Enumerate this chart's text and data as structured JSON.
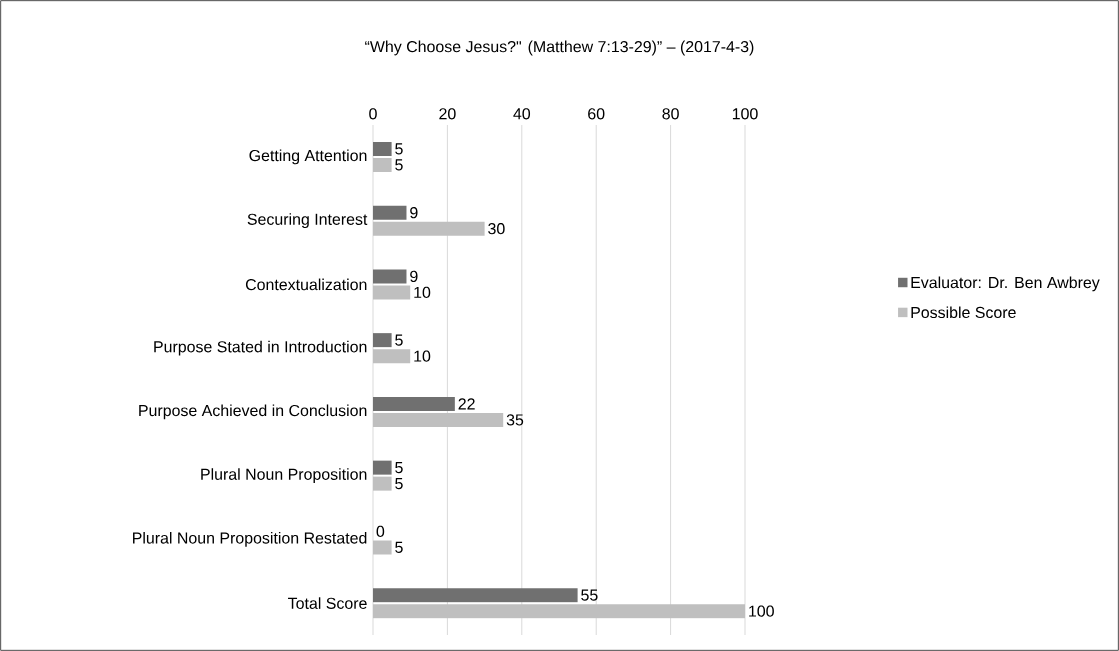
{
  "chart_data": {
    "type": "bar",
    "orientation": "horizontal",
    "title": "“Why Choose Jesus?\" (Matthew 7:13-29)” – (2017-4-3)",
    "categories": [
      "Getting Attention",
      "Securing Interest",
      "Contextualization",
      "Purpose Stated in Introduction",
      "Purpose Achieved in Conclusion",
      "Plural Noun Proposition",
      "Plural Noun Proposition Restated",
      "Total Score"
    ],
    "series": [
      {
        "name": "Evaluator: Dr. Ben Awbrey",
        "color": "#707070",
        "values": [
          5,
          9,
          9,
          5,
          22,
          5,
          0,
          55
        ]
      },
      {
        "name": "Possible Score",
        "color": "#bfbfbf",
        "values": [
          5,
          30,
          10,
          10,
          35,
          5,
          5,
          100
        ]
      }
    ],
    "xlim": [
      0,
      100
    ],
    "xticks": [
      0,
      20,
      40,
      60,
      80,
      100
    ],
    "grid": "x",
    "legend": "right",
    "data_labels": true
  }
}
